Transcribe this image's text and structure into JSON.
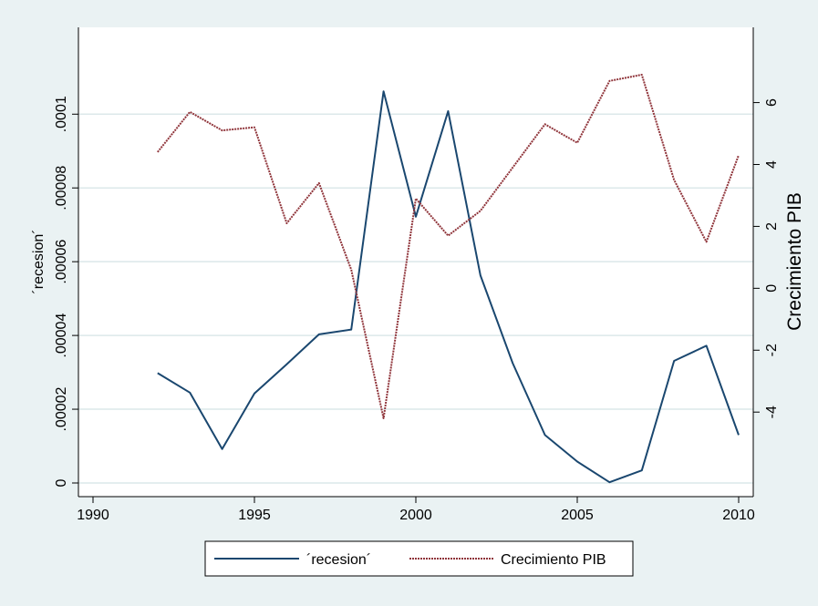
{
  "chart_data": {
    "type": "line",
    "title": "",
    "xlabel": "",
    "x_ticks": [
      1990,
      1995,
      2000,
      2005,
      2010
    ],
    "xlim": [
      1990,
      2010
    ],
    "y_left": {
      "label": "´recesion´",
      "ticks": [
        0,
        2e-05,
        4e-05,
        6e-05,
        8e-05,
        0.0001
      ],
      "tick_labels": [
        "0",
        ".00002",
        ".00004",
        ".00006",
        ".00008",
        ".0001"
      ],
      "range": [
        0,
        0.000106
      ]
    },
    "y_right": {
      "label": "Crecimiento PIB",
      "ticks": [
        -4,
        -2,
        0,
        2,
        4,
        6
      ],
      "tick_labels": [
        "-4",
        "-2",
        "0",
        "2",
        "4",
        "6"
      ],
      "range": [
        -4.2,
        6.9
      ]
    },
    "grid": true,
    "legend_position": "bottom",
    "series": [
      {
        "name": "´recesion´",
        "axis": "left",
        "color": "#1a476f",
        "style": "solid",
        "x": [
          1992,
          1993,
          1994,
          1995,
          1996,
          1997,
          1998,
          1999,
          2000,
          2001,
          2002,
          2003,
          2004,
          2005,
          2006,
          2007,
          2008,
          2009,
          2010
        ],
        "y": [
          2.98e-05,
          2.45e-05,
          9.2e-06,
          2.43e-05,
          3.22e-05,
          4.03e-05,
          4.16e-05,
          0.0001062,
          7.22e-05,
          0.0001008,
          5.63e-05,
          3.25e-05,
          1.3e-05,
          5.8e-06,
          2e-07,
          3.4e-06,
          3.31e-05,
          3.72e-05,
          1.3e-05
        ]
      },
      {
        "name": "Crecimiento PIB",
        "axis": "right",
        "color": "#90353b",
        "style": "dotted",
        "x": [
          1992,
          1993,
          1994,
          1995,
          1996,
          1997,
          1998,
          1999,
          2000,
          2001,
          2002,
          2003,
          2004,
          2005,
          2006,
          2007,
          2008,
          2009,
          2010
        ],
        "y": [
          4.4,
          5.7,
          5.1,
          5.2,
          2.1,
          3.4,
          0.6,
          -4.2,
          2.9,
          1.7,
          2.5,
          3.9,
          5.3,
          4.7,
          6.7,
          6.9,
          3.5,
          1.5,
          4.3
        ]
      }
    ]
  }
}
